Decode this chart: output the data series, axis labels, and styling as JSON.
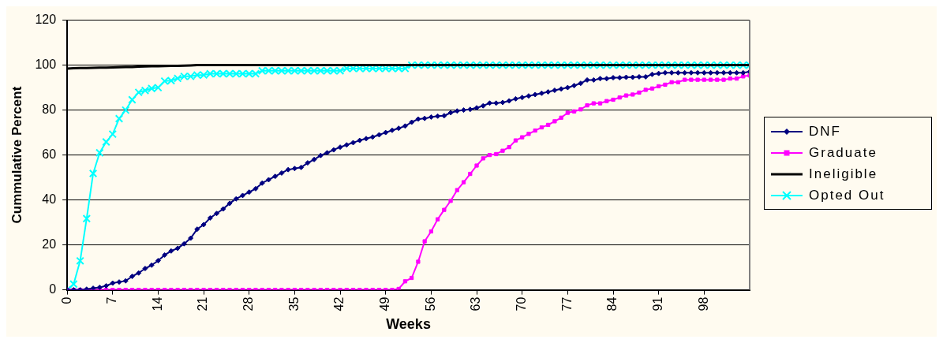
{
  "chart_data": {
    "type": "line",
    "xlabel": "Weeks",
    "ylabel": "Cummulative Percent",
    "x": [
      0,
      1,
      2,
      3,
      4,
      5,
      6,
      7,
      8,
      9,
      10,
      11,
      12,
      13,
      14,
      15,
      16,
      17,
      18,
      19,
      20,
      21,
      22,
      23,
      24,
      25,
      26,
      27,
      28,
      29,
      30,
      31,
      32,
      33,
      34,
      35,
      36,
      37,
      38,
      39,
      40,
      41,
      42,
      43,
      44,
      45,
      46,
      47,
      48,
      49,
      50,
      51,
      52,
      53,
      54,
      55,
      56,
      57,
      58,
      59,
      60,
      61,
      62,
      63,
      64,
      65,
      66,
      67,
      68,
      69,
      70,
      71,
      72,
      73,
      74,
      75,
      76,
      77,
      78,
      79,
      80,
      81,
      82,
      83,
      84,
      85,
      86,
      87,
      88,
      89,
      90,
      91,
      92,
      93,
      94,
      95,
      96,
      97,
      98,
      99,
      100,
      101,
      102,
      103,
      104,
      105
    ],
    "xlim": [
      0,
      105
    ],
    "xticks": [
      0,
      7,
      14,
      21,
      28,
      35,
      42,
      49,
      56,
      63,
      70,
      77,
      84,
      91,
      98
    ],
    "ylim": [
      0,
      120
    ],
    "yticks": [
      0,
      20,
      40,
      60,
      80,
      100,
      120
    ],
    "grid": "y",
    "legend": "right",
    "series": [
      {
        "name": "DNF",
        "color": "#000080",
        "marker": "diamond",
        "values": [
          0,
          0,
          0,
          0.3,
          0.7,
          1.1,
          1.8,
          3,
          3.5,
          4,
          6,
          7.5,
          9.5,
          11,
          13,
          15.5,
          17.3,
          18.5,
          20.5,
          23,
          27,
          29,
          32,
          34,
          36,
          38.5,
          40.5,
          42,
          43.5,
          45,
          47.5,
          49,
          50.5,
          52,
          53.5,
          54,
          54.5,
          56.5,
          58,
          59.8,
          61,
          62.3,
          63.5,
          64.5,
          65.5,
          66.5,
          67.3,
          68,
          69,
          70,
          71,
          71.9,
          72.9,
          74.6,
          76,
          76.3,
          76.9,
          77.3,
          77.5,
          78.8,
          79.6,
          80,
          80.3,
          81,
          81.9,
          83.1,
          83.1,
          83.4,
          84.1,
          85,
          85.6,
          86.3,
          86.9,
          87.5,
          88.1,
          88.8,
          89.4,
          90,
          90.9,
          91.9,
          93.4,
          93.4,
          94,
          94,
          94.4,
          94.4,
          94.6,
          94.6,
          94.8,
          94.8,
          95.9,
          96.3,
          96.6,
          96.6,
          96.6,
          96.6,
          96.6,
          96.6,
          96.6,
          96.6,
          96.6,
          96.6,
          96.6,
          96.6,
          96.6,
          97.1
        ]
      },
      {
        "name": "Graduate",
        "color": "#ff00ff",
        "marker": "square",
        "values": [
          0,
          0,
          0,
          0,
          0,
          0,
          0,
          0,
          0,
          0,
          0,
          0,
          0,
          0,
          0,
          0,
          0,
          0,
          0,
          0,
          0,
          0,
          0,
          0,
          0,
          0,
          0,
          0,
          0,
          0,
          0,
          0,
          0,
          0,
          0,
          0,
          0,
          0,
          0,
          0,
          0,
          0,
          0,
          0,
          0,
          0,
          0,
          0,
          0,
          0,
          0,
          0.4,
          3.8,
          5.3,
          12.5,
          21.6,
          26,
          31.4,
          35.6,
          39.6,
          44.4,
          47.9,
          51.6,
          55.3,
          58.5,
          60,
          60.4,
          61.9,
          63.5,
          66.5,
          67.9,
          69.4,
          70.9,
          72.3,
          73.4,
          75,
          76.6,
          78.8,
          79.4,
          80.3,
          82.1,
          83,
          83,
          84,
          84.6,
          85.6,
          86.5,
          86.9,
          87.8,
          89,
          89.6,
          90.6,
          91.3,
          92.4,
          92.4,
          93.5,
          93.5,
          93.5,
          93.5,
          93.5,
          93.5,
          93.5,
          94,
          94,
          95,
          95.4
        ]
      },
      {
        "name": "Ineligible",
        "color": "#000000",
        "marker": "none",
        "values": [
          98.5,
          98.6,
          98.7,
          98.7,
          98.8,
          98.9,
          98.9,
          99,
          99.1,
          99.2,
          99.2,
          99.3,
          99.4,
          99.5,
          99.5,
          99.6,
          99.7,
          99.7,
          99.8,
          99.9,
          100,
          100,
          100,
          100,
          100,
          100,
          100,
          100,
          100,
          100,
          100,
          100,
          100,
          100,
          100,
          100,
          100,
          100,
          100,
          100,
          100,
          100,
          100,
          100,
          100,
          100,
          100,
          100,
          100,
          100,
          100,
          100,
          100,
          100,
          100,
          100,
          100,
          100,
          100,
          100,
          100,
          100,
          100,
          100,
          100,
          100,
          100,
          100,
          100,
          100,
          100,
          100,
          100,
          100,
          100,
          100,
          100,
          100,
          100,
          100,
          100,
          100,
          100,
          100,
          100,
          100,
          100,
          100,
          100,
          100,
          100,
          100,
          100,
          100,
          100,
          100,
          100,
          100,
          100,
          100,
          100,
          100,
          100,
          100,
          100,
          100
        ]
      },
      {
        "name": "Opted Out",
        "color": "#00ffff",
        "marker": "cross",
        "values": [
          0,
          2.6,
          12.9,
          31.7,
          51.8,
          61,
          65.8,
          69.3,
          76.2,
          80,
          84.6,
          87.9,
          88.7,
          89.6,
          90,
          92.9,
          93.1,
          94.1,
          95,
          95,
          95.6,
          95.6,
          96.2,
          96.2,
          96.2,
          96.2,
          96.2,
          96.2,
          96.2,
          96.2,
          97.5,
          97.5,
          97.5,
          97.5,
          97.5,
          97.5,
          97.5,
          97.5,
          97.5,
          97.5,
          97.5,
          97.5,
          97.5,
          98.5,
          98.5,
          98.5,
          98.5,
          98.5,
          98.5,
          98.5,
          98.5,
          98.5,
          98.5,
          100,
          100,
          100,
          100,
          100,
          100,
          100,
          100,
          100,
          100,
          100,
          100,
          100,
          100,
          100,
          100,
          100,
          100,
          100,
          100,
          100,
          100,
          100,
          100,
          100,
          100,
          100,
          100,
          100,
          100,
          100,
          100,
          100,
          100,
          100,
          100,
          100,
          100,
          100,
          100,
          100,
          100,
          100,
          100,
          100,
          100,
          100,
          100,
          100,
          100,
          100,
          100,
          100
        ]
      }
    ]
  }
}
